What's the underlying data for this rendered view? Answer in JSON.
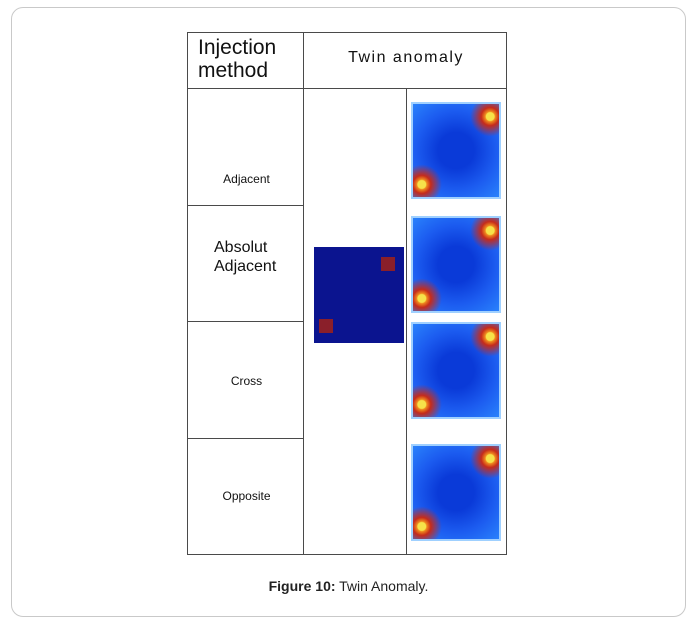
{
  "table": {
    "header_method": "Injection method",
    "header_anomaly": "Twin anomaly",
    "rows": [
      {
        "label": "Adjacent"
      },
      {
        "label": "Absolut Adjacent"
      },
      {
        "label": "Cross"
      },
      {
        "label": "Opposite"
      }
    ]
  },
  "caption": {
    "figure": "Figure 10:",
    "text": "Twin Anomaly."
  },
  "colors": {
    "anomaly_background": "#0b148f",
    "anomaly_hotspot": "#8a1f2a",
    "border": "#4a4a4a"
  }
}
